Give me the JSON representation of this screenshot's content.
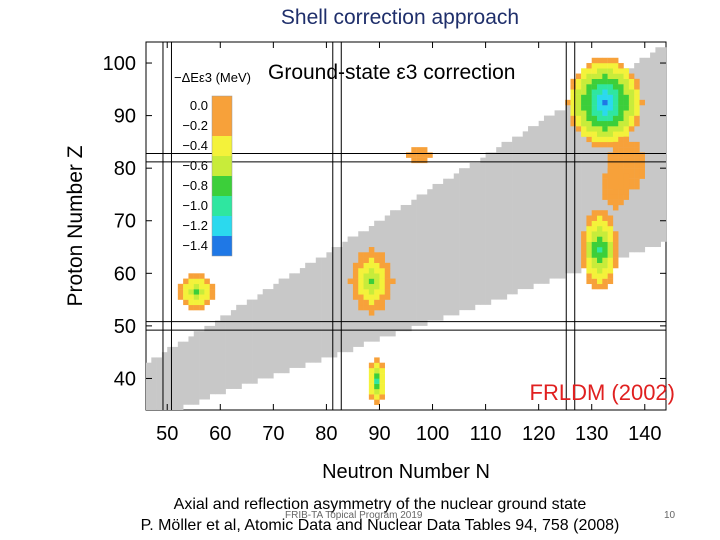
{
  "slide": {
    "title": "Shell correction approach",
    "caption_line1": "Axial and reflection asymmetry of the nuclear ground state",
    "caption_line2": "P. Möller et al,  Atomic Data and Nuclear Data Tables 94, 758 (2008)",
    "footer": "FRIB-TA Topical Program 2019",
    "page_number": "10"
  },
  "chart_data": {
    "type": "heatmap",
    "title": "Ground-state ε3 correction",
    "xlabel": "Neutron Number N",
    "ylabel": "Proton Number Z",
    "xlim": [
      46,
      144
    ],
    "ylim": [
      34,
      104
    ],
    "xticks": [
      50,
      60,
      70,
      80,
      90,
      100,
      110,
      120,
      130,
      140
    ],
    "yticks": [
      40,
      50,
      60,
      70,
      80,
      90,
      100
    ],
    "legend_title": "−ΔEε3 (MeV)",
    "legend_levels": [
      {
        "label": "0.0",
        "color": "#f7a13a"
      },
      {
        "label": "−0.2",
        "color": "#f7a13a"
      },
      {
        "label": "−0.4",
        "color": "#f4f23a"
      },
      {
        "label": "−0.6",
        "color": "#c8ec3a"
      },
      {
        "label": "−0.8",
        "color": "#3ccf3a"
      },
      {
        "label": "−1.0",
        "color": "#2fe6a0"
      },
      {
        "label": "−1.2",
        "color": "#2bd9ee"
      },
      {
        "label": "−1.4",
        "color": "#1f78e6"
      }
    ],
    "magic_lines_N": [
      50,
      82,
      126
    ],
    "magic_lines_Z": [
      50,
      82
    ],
    "background_color": "#c8c8c8",
    "annotation": "FRLDM (2002)",
    "regions": [
      {
        "n": 55,
        "z": 56,
        "rn": 3.5,
        "rz": 3.5,
        "peak": 0.7
      },
      {
        "n": 88,
        "z": 58,
        "rn": 4.0,
        "rz": 6.0,
        "peak": 0.7
      },
      {
        "n": 89,
        "z": 39,
        "rn": 1.8,
        "rz": 4.5,
        "peak": 0.9
      },
      {
        "n": 131,
        "z": 64,
        "rn": 3.5,
        "rz": 7.5,
        "peak": 1.0
      },
      {
        "n": 132,
        "z": 92,
        "rn": 7.0,
        "rz": 8.5,
        "peak": 1.4
      },
      {
        "n": 136,
        "z": 80,
        "rn": 3.5,
        "rz": 5.0,
        "peak": 0.1
      },
      {
        "n": 134,
        "z": 76,
        "rn": 2.5,
        "rz": 4.0,
        "peak": 0.1
      },
      {
        "n": 97,
        "z": 82,
        "rn": 2.5,
        "rz": 1.5,
        "peak": 0.1
      }
    ]
  }
}
